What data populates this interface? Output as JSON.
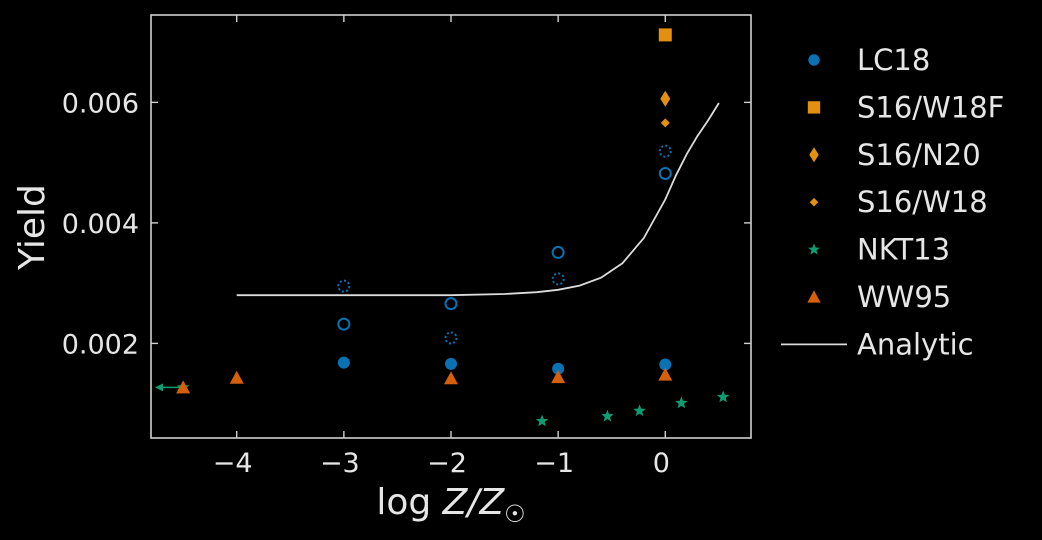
{
  "chart_data": {
    "type": "scatter",
    "xlabel": "log Z/Z☉",
    "ylabel": "Yield",
    "xlim": [
      -4.8,
      0.8
    ],
    "ylim": [
      0.00043,
      0.00745
    ],
    "xticks": [
      -4,
      -3,
      -2,
      -1,
      0
    ],
    "xtick_labels": [
      "−4",
      "−3",
      "−2",
      "−1",
      "0"
    ],
    "yticks": [
      0.002,
      0.004,
      0.006
    ],
    "ytick_labels": [
      "0.002",
      "0.004",
      "0.006"
    ],
    "grid": false,
    "legend_position": "right, outside",
    "colors": {
      "background": "#000000",
      "axes": "#cfcfcf",
      "text": "#e6e6e6",
      "blue": "#0a72b3",
      "orange": "#e38f12",
      "green": "#0e9c73",
      "red_orange": "#d65f0e",
      "line": "#dcdcdc"
    },
    "series": [
      {
        "name": "LC18",
        "marker": "circle-filled",
        "color": "#0a72b3",
        "points": [
          [
            -3,
            0.00168
          ],
          [
            -2,
            0.00166
          ],
          [
            -1,
            0.00158
          ],
          [
            0,
            0.00165
          ]
        ]
      },
      {
        "name": "S16/W18F",
        "marker": "square",
        "color": "#e38f12",
        "points": [
          [
            0,
            0.00712
          ]
        ]
      },
      {
        "name": "S16/N20",
        "marker": "thin-diamond",
        "color": "#e38f12",
        "points": [
          [
            0,
            0.00606
          ]
        ]
      },
      {
        "name": "S16/W18",
        "marker": "diamond-small",
        "color": "#e38f12",
        "points": [
          [
            0,
            0.00566
          ]
        ]
      },
      {
        "name": "NKT13",
        "marker": "star",
        "color": "#0e9c73",
        "points": [
          [
            -4.5,
            0.00127
          ],
          [
            -1.15,
            0.00071
          ],
          [
            -0.54,
            0.00079
          ],
          [
            -0.24,
            0.00088
          ],
          [
            0.15,
            0.00101
          ],
          [
            0.54,
            0.00111
          ]
        ],
        "upper_limit_arrow_x": -4.5
      },
      {
        "name": "WW95",
        "marker": "triangle",
        "color": "#d65f0e",
        "points": [
          [
            -4.5,
            0.00127
          ],
          [
            -4,
            0.00143
          ],
          [
            -2,
            0.00142
          ],
          [
            -1,
            0.00144
          ],
          [
            0,
            0.00148
          ]
        ]
      },
      {
        "name": "Analytic",
        "marker": "line",
        "color": "#dcdcdc",
        "points": [
          [
            -4,
            0.0028
          ],
          [
            -3.5,
            0.0028
          ],
          [
            -3,
            0.0028
          ],
          [
            -2.5,
            0.0028
          ],
          [
            -2,
            0.0028
          ],
          [
            -1.5,
            0.00282
          ],
          [
            -1.2,
            0.00285
          ],
          [
            -1,
            0.00289
          ],
          [
            -0.8,
            0.00296
          ],
          [
            -0.6,
            0.00309
          ],
          [
            -0.4,
            0.00333
          ],
          [
            -0.2,
            0.00375
          ],
          [
            0,
            0.00439
          ],
          [
            0.1,
            0.00479
          ],
          [
            0.2,
            0.00514
          ],
          [
            0.3,
            0.00544
          ],
          [
            0.4,
            0.0057
          ],
          [
            0.5,
            0.00599
          ]
        ]
      }
    ],
    "unlabeled_series": [
      {
        "marker": "circle-open",
        "color": "#0a72b3",
        "points": [
          [
            -3,
            0.00232
          ],
          [
            -2,
            0.00266
          ],
          [
            -1,
            0.00351
          ],
          [
            0,
            0.00482
          ]
        ]
      },
      {
        "marker": "circle-open-dotted",
        "color": "#0a72b3",
        "points": [
          [
            -3,
            0.00295
          ],
          [
            -2,
            0.00209
          ],
          [
            -1,
            0.00307
          ],
          [
            0,
            0.00519
          ]
        ]
      }
    ]
  }
}
